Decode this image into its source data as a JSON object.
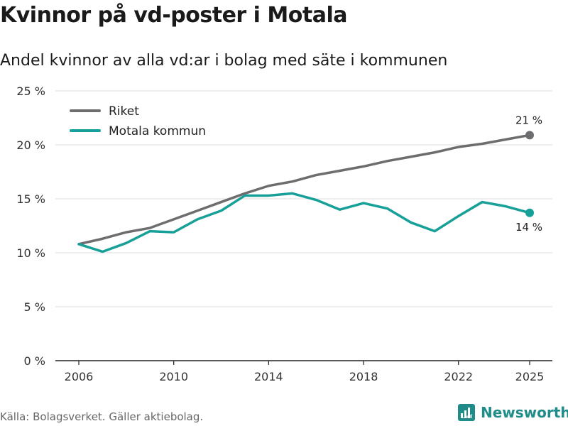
{
  "title": "Kvinnor på vd-poster i Motala",
  "subtitle": "Andel kvinnor av alla vd:ar i bolag med säte i kommunen",
  "source": "Källa: Bolagsverket. Gäller aktiebolag.",
  "brand": "Newsworthy",
  "chart_data": {
    "type": "line",
    "title": "Kvinnor på vd-poster i Motala",
    "subtitle": "Andel kvinnor av alla vd:ar i bolag med säte i kommunen",
    "xlabel": "",
    "ylabel": "",
    "x": [
      2006,
      2007,
      2008,
      2009,
      2010,
      2011,
      2012,
      2013,
      2014,
      2015,
      2016,
      2017,
      2018,
      2019,
      2020,
      2021,
      2022,
      2023,
      2024,
      2025
    ],
    "xlim": [
      2006,
      2025
    ],
    "xticks": [
      2006,
      2010,
      2014,
      2018,
      2022,
      2025
    ],
    "xtick_labels": [
      "2006",
      "2010",
      "2014",
      "2018",
      "2022",
      "2025"
    ],
    "ylim": [
      0,
      25
    ],
    "yticks": [
      0,
      5,
      10,
      15,
      20,
      25
    ],
    "ytick_labels": [
      "0 %",
      "5 %",
      "10 %",
      "15 %",
      "20 %",
      "25 %"
    ],
    "grid": true,
    "legend_position": "top-left",
    "series": [
      {
        "name": "Riket",
        "color": "#6d6d70",
        "values": [
          10.8,
          11.3,
          11.9,
          12.3,
          13.1,
          13.9,
          14.7,
          15.5,
          16.2,
          16.6,
          17.2,
          17.6,
          18.0,
          18.5,
          18.9,
          19.3,
          19.8,
          20.1,
          20.5,
          20.9
        ],
        "end_label": "21 %"
      },
      {
        "name": "Motala kommun",
        "color": "#17a098",
        "values": [
          10.8,
          10.1,
          10.9,
          12.0,
          11.9,
          13.1,
          13.9,
          15.3,
          15.3,
          15.5,
          14.9,
          14.0,
          14.6,
          14.1,
          12.8,
          12.0,
          13.4,
          14.7,
          14.3,
          13.7
        ],
        "end_label": "14 %"
      }
    ]
  }
}
